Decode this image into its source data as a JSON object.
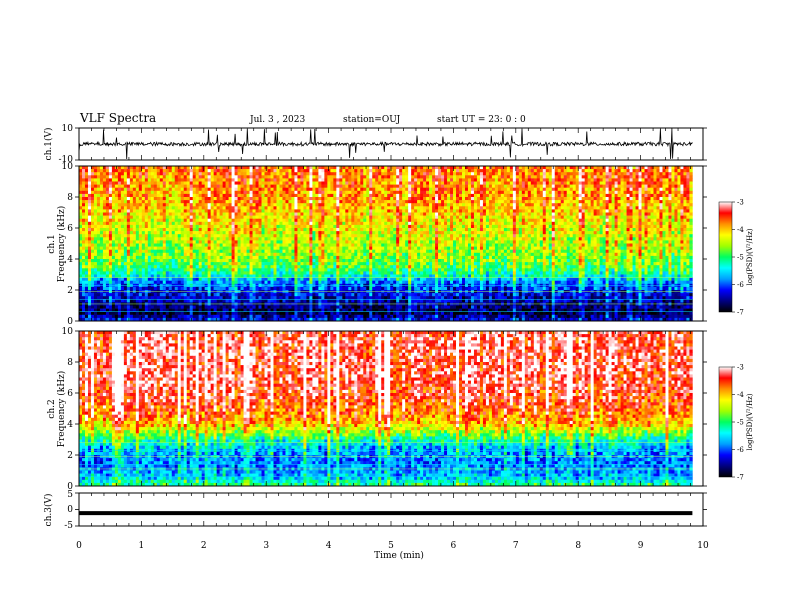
{
  "header": {
    "title": "VLF Spectra",
    "date": "Jul. 3 , 2023",
    "station": "station=OUJ",
    "start": "start UT = 23: 0 : 0"
  },
  "chart_data": [
    {
      "type": "line",
      "name": "ch1-waveform",
      "ylabel": "ch.1(V)",
      "ylim": [
        -10,
        10
      ],
      "yticks": [
        "10",
        "-10"
      ],
      "xlim": [
        0,
        10
      ],
      "baseline": 0,
      "trace_color": "#000000"
    },
    {
      "type": "heatmap",
      "name": "ch1-spectrogram",
      "ylabel": "ch.1 Frequency (kHz)",
      "ylabel_line1": "ch.1",
      "ylabel_line2": "Frequency (kHz)",
      "ylim": [
        0,
        10
      ],
      "yticks": [
        "0",
        "2",
        "4",
        "6",
        "8",
        "10"
      ],
      "xlim": [
        0,
        9.83
      ],
      "colorbar": {
        "label": "log(PSD)(V²/Hz)",
        "range": [
          -7,
          -3
        ],
        "ticks": [
          "-3",
          "-4",
          "-5",
          "-6",
          "-7"
        ]
      },
      "psd_profile": {
        "freq_khz": [
          0,
          0.5,
          1,
          1.5,
          2,
          2.5,
          3,
          3.5,
          4,
          5,
          6,
          7,
          8,
          9,
          10
        ],
        "log_psd": [
          -6.2,
          -6.8,
          -6.6,
          -6.4,
          -6.2,
          -5.9,
          -5.3,
          -4.9,
          -4.7,
          -4.5,
          -4.3,
          -4.1,
          -3.9,
          -3.8,
          -3.7
        ]
      }
    },
    {
      "type": "heatmap",
      "name": "ch2-spectrogram",
      "ylabel": "ch.2 Frequency (kHz)",
      "ylabel_line1": "ch.2",
      "ylabel_line2": "Frequency (kHz)",
      "ylim": [
        0,
        10
      ],
      "yticks": [
        "0",
        "2",
        "4",
        "6",
        "8",
        "10"
      ],
      "xlim": [
        0,
        9.83
      ],
      "colorbar": {
        "label": "log(PSD)(V²/Hz)",
        "range": [
          -7,
          -3
        ],
        "ticks": [
          "-3",
          "-4",
          "-5",
          "-6",
          "-7"
        ]
      },
      "psd_profile": {
        "freq_khz": [
          0,
          0.5,
          1,
          1.5,
          2,
          2.5,
          3,
          3.5,
          4,
          5,
          6,
          7,
          8,
          9,
          10
        ],
        "log_psd": [
          -5.0,
          -5.6,
          -5.8,
          -5.9,
          -5.8,
          -5.6,
          -5.2,
          -4.6,
          -4.0,
          -3.6,
          -3.4,
          -3.3,
          -3.3,
          -3.3,
          -3.3
        ]
      }
    },
    {
      "type": "line",
      "name": "ch3-waveform",
      "ylabel": "ch.3(V)",
      "ylim": [
        -5,
        5
      ],
      "yticks": [
        "5",
        "0",
        "-5"
      ],
      "xlim": [
        0,
        10
      ],
      "value": -1.1,
      "trace_color": "#000000"
    }
  ],
  "xaxis": {
    "label": "Time (min)",
    "range": [
      0,
      10
    ],
    "ticks": [
      "0",
      "1",
      "2",
      "3",
      "4",
      "5",
      "6",
      "7",
      "8",
      "9",
      "10"
    ]
  },
  "colormap": [
    "#000000",
    "#00007f",
    "#0000ff",
    "#00a0ff",
    "#00ffff",
    "#00ff60",
    "#a0ff00",
    "#ffff00",
    "#ff9000",
    "#ff0000",
    "#ffffff"
  ]
}
